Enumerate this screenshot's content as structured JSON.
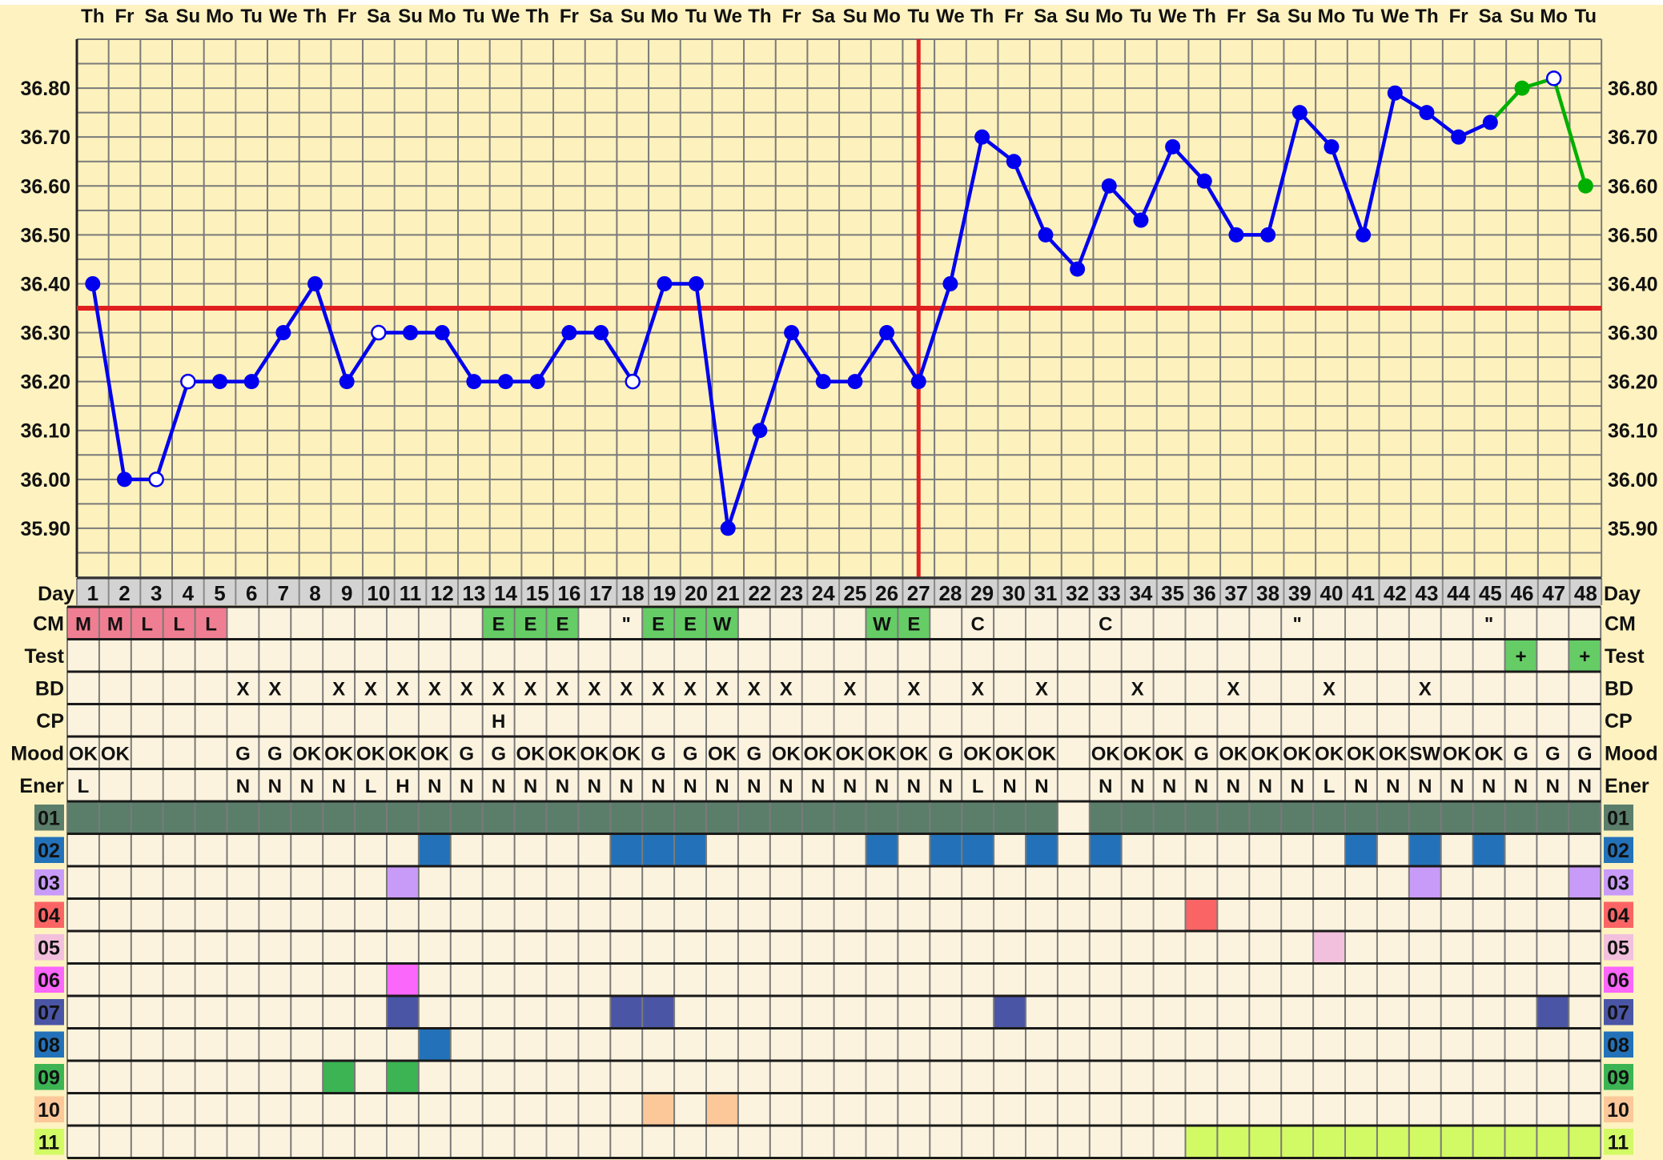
{
  "weekdays": [
    "Th",
    "Fr",
    "Sa",
    "Su",
    "Mo",
    "Tu",
    "We",
    "Th",
    "Fr",
    "Sa",
    "Su",
    "Mo",
    "Tu",
    "We",
    "Th",
    "Fr",
    "Sa",
    "Su",
    "Mo",
    "Tu",
    "We",
    "Th",
    "Fr",
    "Sa",
    "Su",
    "Mo",
    "Tu",
    "We",
    "Th",
    "Fr",
    "Sa",
    "Su",
    "Mo",
    "Tu",
    "We",
    "Th",
    "Fr",
    "Sa",
    "Su",
    "Mo",
    "Tu",
    "We",
    "Th",
    "Fr",
    "Sa",
    "Su",
    "Mo",
    "Tu"
  ],
  "day_row_label": "Day",
  "chart_data": {
    "type": "line",
    "x": [
      1,
      2,
      3,
      4,
      5,
      6,
      7,
      8,
      9,
      10,
      11,
      12,
      13,
      14,
      15,
      16,
      17,
      18,
      19,
      20,
      21,
      22,
      23,
      24,
      25,
      26,
      27,
      28,
      29,
      30,
      31,
      32,
      33,
      34,
      35,
      36,
      37,
      38,
      39,
      40,
      41,
      42,
      43,
      44,
      45,
      46,
      47,
      48
    ],
    "series": [
      {
        "values": [
          36.4,
          36.0,
          36.0,
          36.2,
          36.2,
          36.2,
          36.3,
          36.4,
          36.2,
          36.3,
          36.3,
          36.3,
          36.2,
          36.2,
          36.2,
          36.3,
          36.3,
          36.2,
          36.4,
          36.4,
          35.9,
          36.1,
          36.3,
          36.2,
          36.2,
          36.3,
          36.2,
          36.4,
          36.7,
          36.65,
          36.5,
          36.43,
          36.6,
          36.53,
          36.68,
          36.61,
          36.5,
          36.5,
          36.75,
          36.68,
          36.5,
          36.79,
          36.75,
          36.7,
          36.73,
          36.8,
          36.82,
          36.6
        ],
        "color": "#0000ee",
        "continuation_color": "#00b000",
        "continuation_from_day": 45,
        "open_marker_days": [
          3,
          4,
          10,
          18,
          47
        ]
      }
    ],
    "coverline": 36.35,
    "coverline_color": "#e02020",
    "marker_day": 27,
    "ylim": [
      35.8,
      36.9
    ],
    "yticks": [
      "35.90",
      "36.00",
      "36.10",
      "36.20",
      "36.30",
      "36.40",
      "36.50",
      "36.60",
      "36.70",
      "36.80"
    ],
    "grid": true
  },
  "table": {
    "rows": [
      {
        "label": "CM",
        "cells": [
          "M",
          "M",
          "L",
          "L",
          "L",
          "",
          "",
          "",
          "",
          "",
          "",
          "",
          "",
          "E",
          "E",
          "E",
          "",
          "\"",
          "E",
          "E",
          "W",
          "",
          "",
          "",
          "",
          "W",
          "E",
          "",
          "C",
          "",
          "",
          "",
          "C",
          "",
          "",
          "",
          "",
          "",
          "\"",
          "",
          "",
          "",
          "",
          "",
          "\"",
          "",
          "",
          ""
        ],
        "highlights": {
          "1": "#f07e92",
          "2": "#f07e92",
          "3": "#f07e92",
          "4": "#f07e92",
          "5": "#f07e92",
          "14": "#66cc66",
          "15": "#66cc66",
          "16": "#66cc66",
          "19": "#66cc66",
          "20": "#66cc66",
          "21": "#66cc66",
          "26": "#66cc66",
          "27": "#66cc66"
        }
      },
      {
        "label": "Test",
        "cells": [
          "",
          "",
          "",
          "",
          "",
          "",
          "",
          "",
          "",
          "",
          "",
          "",
          "",
          "",
          "",
          "",
          "",
          "",
          "",
          "",
          "",
          "",
          "",
          "",
          "",
          "",
          "",
          "",
          "",
          "",
          "",
          "",
          "",
          "",
          "",
          "",
          "",
          "",
          "",
          "",
          "",
          "",
          "",
          "",
          "",
          "+",
          "",
          "+"
        ],
        "highlights": {
          "46": "#66cc66",
          "48": "#66cc66"
        }
      },
      {
        "label": "BD",
        "cells": [
          "",
          "",
          "",
          "",
          "",
          "X",
          "X",
          "",
          "X",
          "X",
          "X",
          "X",
          "X",
          "X",
          "X",
          "X",
          "X",
          "X",
          "X",
          "X",
          "X",
          "X",
          "X",
          "",
          "X",
          "",
          "X",
          "",
          "X",
          "",
          "X",
          "",
          "",
          "X",
          "",
          "",
          "X",
          "",
          "",
          "X",
          "",
          "",
          "X",
          "",
          "",
          "",
          "",
          ""
        ],
        "highlights": {}
      },
      {
        "label": "CP",
        "cells": [
          "",
          "",
          "",
          "",
          "",
          "",
          "",
          "",
          "",
          "",
          "",
          "",
          "",
          "H",
          "",
          "",
          "",
          "",
          "",
          "",
          "",
          "",
          "",
          "",
          "",
          "",
          "",
          "",
          "",
          "",
          "",
          "",
          "",
          "",
          "",
          "",
          "",
          "",
          "",
          "",
          "",
          "",
          "",
          "",
          "",
          "",
          "",
          ""
        ],
        "highlights": {}
      },
      {
        "label": "Mood",
        "cells": [
          "OK",
          "OK",
          "",
          "",
          "",
          "G",
          "G",
          "OK",
          "OK",
          "OK",
          "OK",
          "OK",
          "G",
          "G",
          "OK",
          "OK",
          "OK",
          "OK",
          "G",
          "G",
          "OK",
          "G",
          "OK",
          "OK",
          "OK",
          "OK",
          "OK",
          "G",
          "OK",
          "OK",
          "OK",
          "",
          "OK",
          "OK",
          "OK",
          "G",
          "OK",
          "OK",
          "OK",
          "OK",
          "OK",
          "OK",
          "SW",
          "OK",
          "OK",
          "G",
          "G",
          "G"
        ],
        "highlights": {}
      },
      {
        "label": "Ener",
        "cells": [
          "L",
          "",
          "",
          "",
          "",
          "N",
          "N",
          "N",
          "N",
          "L",
          "H",
          "N",
          "N",
          "N",
          "N",
          "N",
          "N",
          "N",
          "N",
          "N",
          "N",
          "N",
          "N",
          "N",
          "N",
          "N",
          "N",
          "N",
          "L",
          "N",
          "N",
          "",
          "N",
          "N",
          "N",
          "N",
          "N",
          "N",
          "N",
          "L",
          "N",
          "N",
          "N",
          "N",
          "N",
          "N",
          "N",
          "N"
        ],
        "highlights": {}
      }
    ],
    "color_rows": [
      {
        "label": "01",
        "color": "#5b7e6b",
        "days": [
          1,
          2,
          3,
          4,
          5,
          6,
          7,
          8,
          9,
          10,
          11,
          12,
          13,
          14,
          15,
          16,
          17,
          18,
          19,
          20,
          21,
          22,
          23,
          24,
          25,
          26,
          27,
          28,
          29,
          30,
          31,
          33,
          34,
          35,
          36,
          37,
          38,
          39,
          40,
          41,
          42,
          43,
          44,
          45,
          46,
          47,
          48
        ]
      },
      {
        "label": "02",
        "color": "#2372b9",
        "days": [
          12,
          18,
          19,
          20,
          26,
          28,
          29,
          31,
          33,
          41,
          43,
          45
        ]
      },
      {
        "label": "03",
        "color": "#c99bf8",
        "days": [
          11,
          43,
          48
        ]
      },
      {
        "label": "04",
        "color": "#fa6464",
        "days": [
          36
        ]
      },
      {
        "label": "05",
        "color": "#f2c0dc",
        "days": [
          40
        ]
      },
      {
        "label": "06",
        "color": "#fb66fb",
        "days": [
          11
        ]
      },
      {
        "label": "07",
        "color": "#4b55a5",
        "days": [
          11,
          18,
          19,
          30,
          47
        ]
      },
      {
        "label": "08",
        "color": "#2372b9",
        "days": [
          12
        ]
      },
      {
        "label": "09",
        "color": "#3cb454",
        "days": [
          9,
          11
        ]
      },
      {
        "label": "10",
        "color": "#fcc89a",
        "days": [
          19,
          21
        ]
      },
      {
        "label": "11",
        "color": "#d2fa64",
        "days": [
          36,
          37,
          38,
          39,
          40,
          41,
          42,
          43,
          44,
          45,
          46,
          47,
          48
        ]
      }
    ]
  }
}
